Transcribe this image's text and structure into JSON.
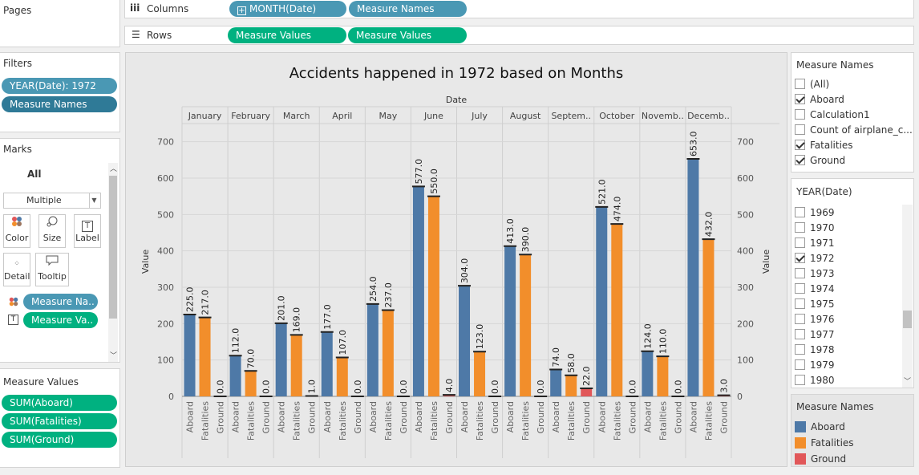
{
  "pages_panel": {
    "title": "Pages"
  },
  "columns_shelf": {
    "label": "Columns",
    "pills": [
      "MONTH(Date)",
      "Measure Names"
    ]
  },
  "rows_shelf": {
    "label": "Rows",
    "pills": [
      "Measure Values",
      "Measure Values"
    ]
  },
  "filters_panel": {
    "title": "Filters",
    "pills": [
      "YEAR(Date): 1972",
      "Measure Names"
    ]
  },
  "marks_panel": {
    "title": "Marks",
    "scope": "All",
    "mark_type": "Multiple",
    "buttons": [
      "Color",
      "Size",
      "Label",
      "Detail",
      "Tooltip"
    ],
    "pills": [
      "Measure Na..",
      "Measure Va.."
    ]
  },
  "measure_values_panel": {
    "title": "Measure Values",
    "pills": [
      "SUM(Aboard)",
      "SUM(Fatalities)",
      "SUM(Ground)"
    ]
  },
  "measure_names_filter": {
    "title": "Measure Names",
    "items": [
      {
        "label": "(All)",
        "checked": false
      },
      {
        "label": "Aboard",
        "checked": true
      },
      {
        "label": "Calculation1",
        "checked": false
      },
      {
        "label": "Count of airplane_c...",
        "checked": false
      },
      {
        "label": "Fatalities",
        "checked": true
      },
      {
        "label": "Ground",
        "checked": true
      }
    ]
  },
  "year_filter": {
    "title": "YEAR(Date)",
    "items": [
      {
        "label": "1969",
        "checked": false
      },
      {
        "label": "1970",
        "checked": false
      },
      {
        "label": "1971",
        "checked": false
      },
      {
        "label": "1972",
        "checked": true
      },
      {
        "label": "1973",
        "checked": false
      },
      {
        "label": "1974",
        "checked": false
      },
      {
        "label": "1975",
        "checked": false
      },
      {
        "label": "1976",
        "checked": false
      },
      {
        "label": "1977",
        "checked": false
      },
      {
        "label": "1978",
        "checked": false
      },
      {
        "label": "1979",
        "checked": false
      },
      {
        "label": "1980",
        "checked": false
      }
    ]
  },
  "legend": {
    "title": "Measure Names",
    "items": [
      {
        "label": "Aboard",
        "color": "#4e79a7"
      },
      {
        "label": "Fatalities",
        "color": "#f28e2b"
      },
      {
        "label": "Ground",
        "color": "#e15759"
      }
    ]
  },
  "chart_data": {
    "type": "bar",
    "title": "Accidents happened in 1972 based on Months",
    "column_header": "Date",
    "ylabel": "Value",
    "ylim": [
      0,
      750
    ],
    "yticks": [
      0,
      100,
      200,
      300,
      400,
      500,
      600,
      700
    ],
    "months": [
      "January",
      "February",
      "March",
      "April",
      "May",
      "June",
      "July",
      "August",
      "Septem..",
      "October",
      "Novemb..",
      "Decemb.."
    ],
    "measures": [
      "Aboard",
      "Fatalities",
      "Ground"
    ],
    "series": [
      {
        "name": "Aboard",
        "color": "#4e79a7",
        "values": [
          225,
          112,
          201,
          177,
          254,
          577,
          304,
          413,
          74,
          521,
          124,
          653
        ],
        "labels": [
          "225.0",
          "112.0",
          "201.0",
          "177.0",
          "254.0",
          "577.0",
          "304.0",
          "413.0",
          "74.0",
          "521.0",
          "124.0",
          "653.0"
        ]
      },
      {
        "name": "Fatalities",
        "color": "#f28e2b",
        "values": [
          217,
          70,
          169,
          107,
          237,
          550,
          123,
          390,
          58,
          474,
          110,
          432
        ],
        "labels": [
          "217.0",
          "70.0",
          "169.0",
          "107.0",
          "237.0",
          "550.0",
          "123.0",
          "390.0",
          "58.0",
          "474.0",
          "110.0",
          "432.0"
        ]
      },
      {
        "name": "Ground",
        "color": "#e15759",
        "values": [
          0,
          0,
          1,
          0,
          0,
          4,
          0,
          0,
          22,
          0,
          0,
          3
        ],
        "labels": [
          "0.0",
          "0.0",
          "1.0",
          "0.0",
          "0.0",
          "4.0",
          "0.0",
          "0.0",
          "22.0",
          "0.0",
          "0.0",
          "3.0"
        ]
      }
    ],
    "grid": true,
    "legend_position": "right"
  }
}
